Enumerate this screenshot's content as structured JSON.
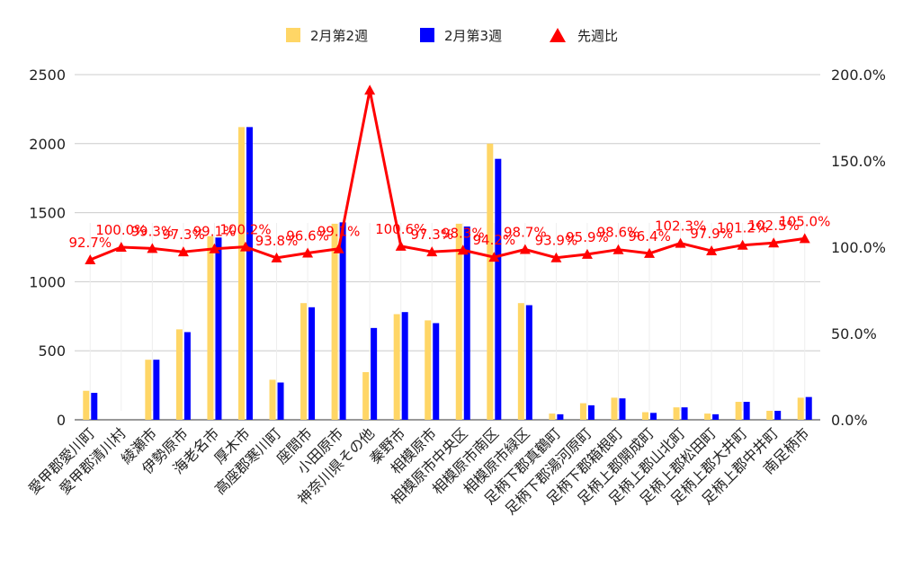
{
  "chart_data": {
    "type": "bar",
    "categories": [
      "愛甲郡愛川町",
      "愛甲郡清川村",
      "綾瀬市",
      "伊勢原市",
      "海老名市",
      "厚木市",
      "高座郡寒川町",
      "座間市",
      "小田原市",
      "神奈川県その他",
      "秦野市",
      "相模原市",
      "相模原市中央区",
      "相模原市南区",
      "相模原市緑区",
      "足柄下郡真鶴町",
      "足柄下郡湯河原町",
      "足柄下郡箱根町",
      "足柄上郡開成町",
      "足柄上郡山北町",
      "足柄上郡松田町",
      "足柄上郡大井町",
      "足柄上郡中井町",
      "南足柄市"
    ],
    "series": [
      {
        "name": "2月第2週",
        "color": "#ffd666",
        "axis": "left",
        "values": [
          210,
          0,
          435,
          655,
          1330,
          2120,
          290,
          845,
          1420,
          345,
          765,
          720,
          1420,
          2000,
          845,
          45,
          120,
          160,
          55,
          90,
          45,
          130,
          65,
          160
        ]
      },
      {
        "name": "2月第3週",
        "color": "#0000ff",
        "axis": "left",
        "values": [
          195,
          0,
          435,
          635,
          1320,
          2120,
          270,
          815,
          1430,
          665,
          780,
          700,
          1400,
          1890,
          830,
          40,
          105,
          155,
          50,
          90,
          40,
          130,
          65,
          165
        ]
      },
      {
        "name": "先週比",
        "color": "#ff0000",
        "axis": "right",
        "marker": "triangle",
        "values": [
          92.7,
          100.0,
          99.3,
          97.3,
          99.1,
          100.2,
          93.8,
          96.6,
          99.1,
          191.0,
          100.6,
          97.3,
          98.3,
          94.2,
          98.7,
          93.9,
          95.9,
          98.6,
          96.4,
          102.3,
          97.9,
          101.2,
          102.5,
          105.0
        ],
        "labels": [
          "92.7%",
          "100.0%",
          "99.3%",
          "97.3%",
          "99.1%",
          "100.2%",
          "93.8%",
          "96.6%",
          "99.1%",
          "",
          "100.6%",
          "97.3%",
          "98.3%",
          "94.2%",
          "98.7%",
          "93.9%",
          "95.9%",
          "98.6%",
          "96.4%",
          "102.3%",
          "97.9%",
          "101.2%",
          "102.5%",
          "105.0%"
        ]
      }
    ],
    "ylim_left": [
      0,
      2500
    ],
    "yticks_left": [
      "0",
      "500",
      "1000",
      "1500",
      "2000",
      "2500"
    ],
    "yticks_left_values": [
      0,
      500,
      1000,
      1500,
      2000,
      2500
    ],
    "ylim_right": [
      0,
      200
    ],
    "yticks_right": [
      "0.0%",
      "50.0%",
      "100.0%",
      "150.0%",
      "200.0%"
    ],
    "yticks_right_values": [
      0,
      50,
      100,
      150,
      200
    ],
    "grid": true,
    "legend_position": "top-center",
    "title": "",
    "xlabel": "",
    "ylabel": ""
  }
}
